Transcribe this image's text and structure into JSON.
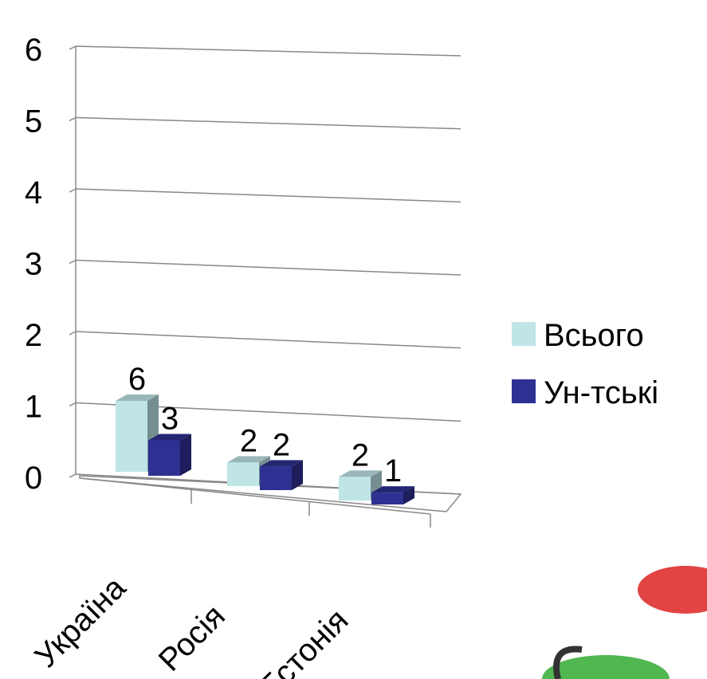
{
  "chart_data": {
    "type": "bar3d",
    "categories": [
      "Україна",
      "Росія",
      "Естонія"
    ],
    "series": [
      {
        "name": "Всього",
        "color": "#bfe5e7",
        "values": [
          6,
          2,
          2
        ]
      },
      {
        "name": "Ун-тські",
        "color": "#2e3192",
        "values": [
          3,
          2,
          1
        ]
      }
    ],
    "ylim": [
      0,
      6
    ],
    "yticks": [
      0,
      1,
      2,
      3,
      4,
      5,
      6
    ],
    "grid": true,
    "legend": "right"
  }
}
